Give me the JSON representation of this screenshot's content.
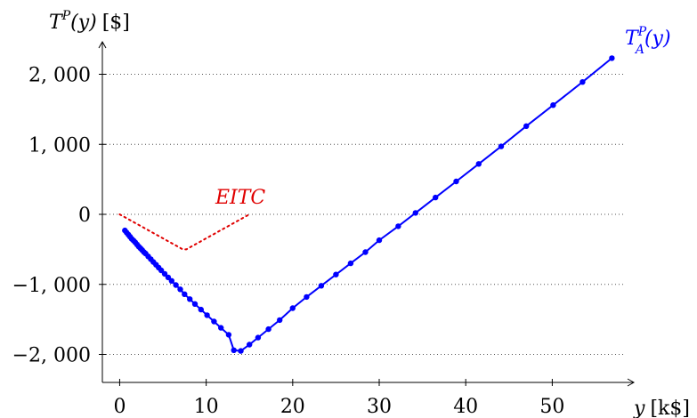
{
  "chart_data": {
    "type": "line",
    "title": "",
    "ylabel": {
      "var": "T",
      "sup": "P",
      "arg": "(y)",
      "unit": "[$]"
    },
    "xlabel": {
      "var": "y",
      "unit": "[k$]"
    },
    "xlim": [
      -2,
      58.5
    ],
    "ylim": [
      -2400,
      2400
    ],
    "x_ticks": [
      0,
      10,
      20,
      30,
      40,
      50
    ],
    "y_ticks": [
      {
        "value": 2000,
        "label": "2, 000"
      },
      {
        "value": 1000,
        "label": "1, 000"
      },
      {
        "value": 0,
        "label": "0"
      },
      {
        "value": -1000,
        "label": "−1, 000"
      },
      {
        "value": -2000,
        "label": "−2, 000"
      }
    ],
    "grid": "horizontal dotted",
    "colors": {
      "series_a": "#0000ff",
      "eitc": "#e00000",
      "axis": "#000000",
      "grid": "#555555"
    },
    "series": [
      {
        "name": "T_A^P(y)",
        "label_var": "T",
        "label_sup": "P",
        "label_sub": "A",
        "label_arg": "(y)",
        "color": "#0000ff",
        "style": "solid",
        "markers": true,
        "points": [
          [
            0.6,
            -230
          ],
          [
            0.8,
            -260
          ],
          [
            1.0,
            -290
          ],
          [
            1.2,
            -320
          ],
          [
            1.4,
            -350
          ],
          [
            1.6,
            -375
          ],
          [
            1.8,
            -400
          ],
          [
            2.0,
            -430
          ],
          [
            2.2,
            -460
          ],
          [
            2.4,
            -485
          ],
          [
            2.6,
            -510
          ],
          [
            2.8,
            -540
          ],
          [
            3.0,
            -560
          ],
          [
            3.3,
            -600
          ],
          [
            3.6,
            -640
          ],
          [
            3.9,
            -680
          ],
          [
            4.2,
            -720
          ],
          [
            4.5,
            -760
          ],
          [
            4.8,
            -800
          ],
          [
            5.2,
            -850
          ],
          [
            5.6,
            -900
          ],
          [
            6.0,
            -950
          ],
          [
            6.5,
            -1010
          ],
          [
            7.0,
            -1070
          ],
          [
            7.5,
            -1140
          ],
          [
            8.1,
            -1210
          ],
          [
            8.7,
            -1280
          ],
          [
            9.4,
            -1360
          ],
          [
            10.1,
            -1440
          ],
          [
            10.9,
            -1530
          ],
          [
            11.7,
            -1620
          ],
          [
            12.6,
            -1720
          ],
          [
            13.2,
            -1940
          ],
          [
            14.0,
            -1950
          ],
          [
            15.0,
            -1860
          ],
          [
            16.0,
            -1760
          ],
          [
            17.2,
            -1640
          ],
          [
            18.5,
            -1510
          ],
          [
            20.0,
            -1340
          ],
          [
            21.6,
            -1180
          ],
          [
            23.3,
            -1020
          ],
          [
            25.0,
            -860
          ],
          [
            26.7,
            -700
          ],
          [
            28.4,
            -540
          ],
          [
            30.0,
            -370
          ],
          [
            32.2,
            -170
          ],
          [
            34.2,
            20
          ],
          [
            36.5,
            240
          ],
          [
            38.9,
            470
          ],
          [
            41.5,
            720
          ],
          [
            44.1,
            970
          ],
          [
            47.0,
            1260
          ],
          [
            50.1,
            1560
          ],
          [
            53.5,
            1890
          ],
          [
            56.9,
            2230
          ]
        ]
      },
      {
        "name": "EITC",
        "color": "#e00000",
        "style": "dotted",
        "markers": false,
        "points": [
          [
            0,
            0
          ],
          [
            7.3,
            -500
          ],
          [
            7.7,
            -500
          ],
          [
            15.0,
            0
          ]
        ]
      }
    ]
  }
}
